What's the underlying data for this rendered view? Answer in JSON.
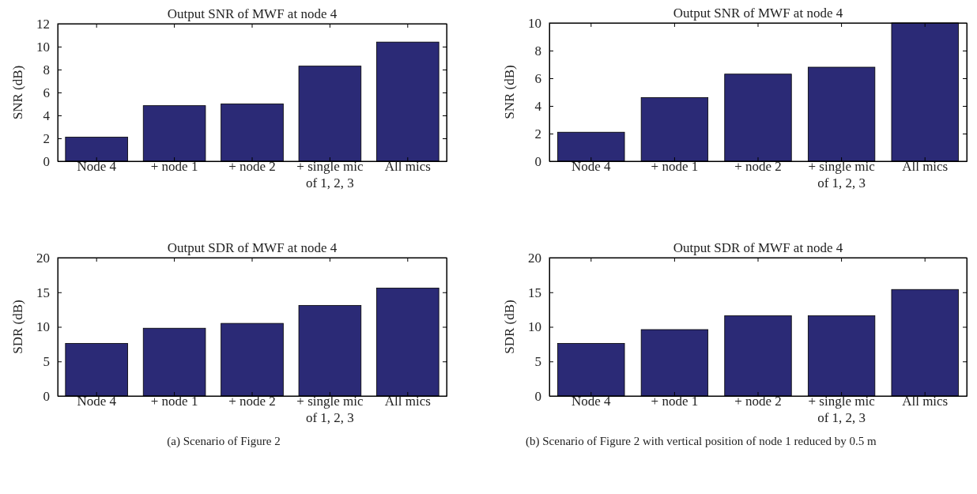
{
  "chart_data": [
    {
      "type": "bar",
      "title": "Output SNR of MWF at node 4",
      "ylabel": "SNR (dB)",
      "categories": [
        "Node 4",
        "+ node 1",
        "+ node 2",
        "+ single mic of 1, 2, 3",
        "All mics"
      ],
      "values": [
        2.1,
        4.85,
        5.0,
        8.3,
        10.4
      ],
      "color": "#2b2a76",
      "ylim": [
        0,
        12
      ],
      "yticks": [
        0,
        2,
        4,
        6,
        8,
        10,
        12
      ]
    },
    {
      "type": "bar",
      "title": "Output SNR of MWF at node 4",
      "ylabel": "SNR (dB)",
      "categories": [
        "Node 4",
        "+ node 1",
        "+ node 2",
        "+ single mic of 1, 2, 3",
        "All mics"
      ],
      "values": [
        2.1,
        4.6,
        6.3,
        6.8,
        10.0
      ],
      "color": "#2b2a76",
      "ylim": [
        0,
        10
      ],
      "yticks": [
        0,
        2,
        4,
        6,
        8,
        10
      ]
    },
    {
      "type": "bar",
      "title": "Output SDR of MWF at node 4",
      "ylabel": "SDR (dB)",
      "categories": [
        "Node 4",
        "+ node 1",
        "+ node 2",
        "+ single mic of 1, 2, 3",
        "All mics"
      ],
      "values": [
        7.6,
        9.8,
        10.5,
        13.1,
        15.6
      ],
      "color": "#2b2a76",
      "ylim": [
        0,
        20
      ],
      "yticks": [
        0,
        5,
        10,
        15,
        20
      ],
      "annotations": [
        "(a)  Scenario of Figure 2"
      ]
    },
    {
      "type": "bar",
      "title": "Output SDR of MWF at node 4",
      "ylabel": "SDR (dB)",
      "categories": [
        "Node 4",
        "+ node 1",
        "+ node 2",
        "+ single mic of 1, 2, 3",
        "All mics"
      ],
      "values": [
        7.6,
        9.6,
        11.6,
        11.6,
        15.4
      ],
      "color": "#2b2a76",
      "ylim": [
        0,
        20
      ],
      "yticks": [
        0,
        5,
        10,
        15,
        20
      ],
      "annotations": [
        "(b)  Scenario of Figure 2 with vertical position of node 1 reduced by 0.5 m"
      ]
    }
  ]
}
